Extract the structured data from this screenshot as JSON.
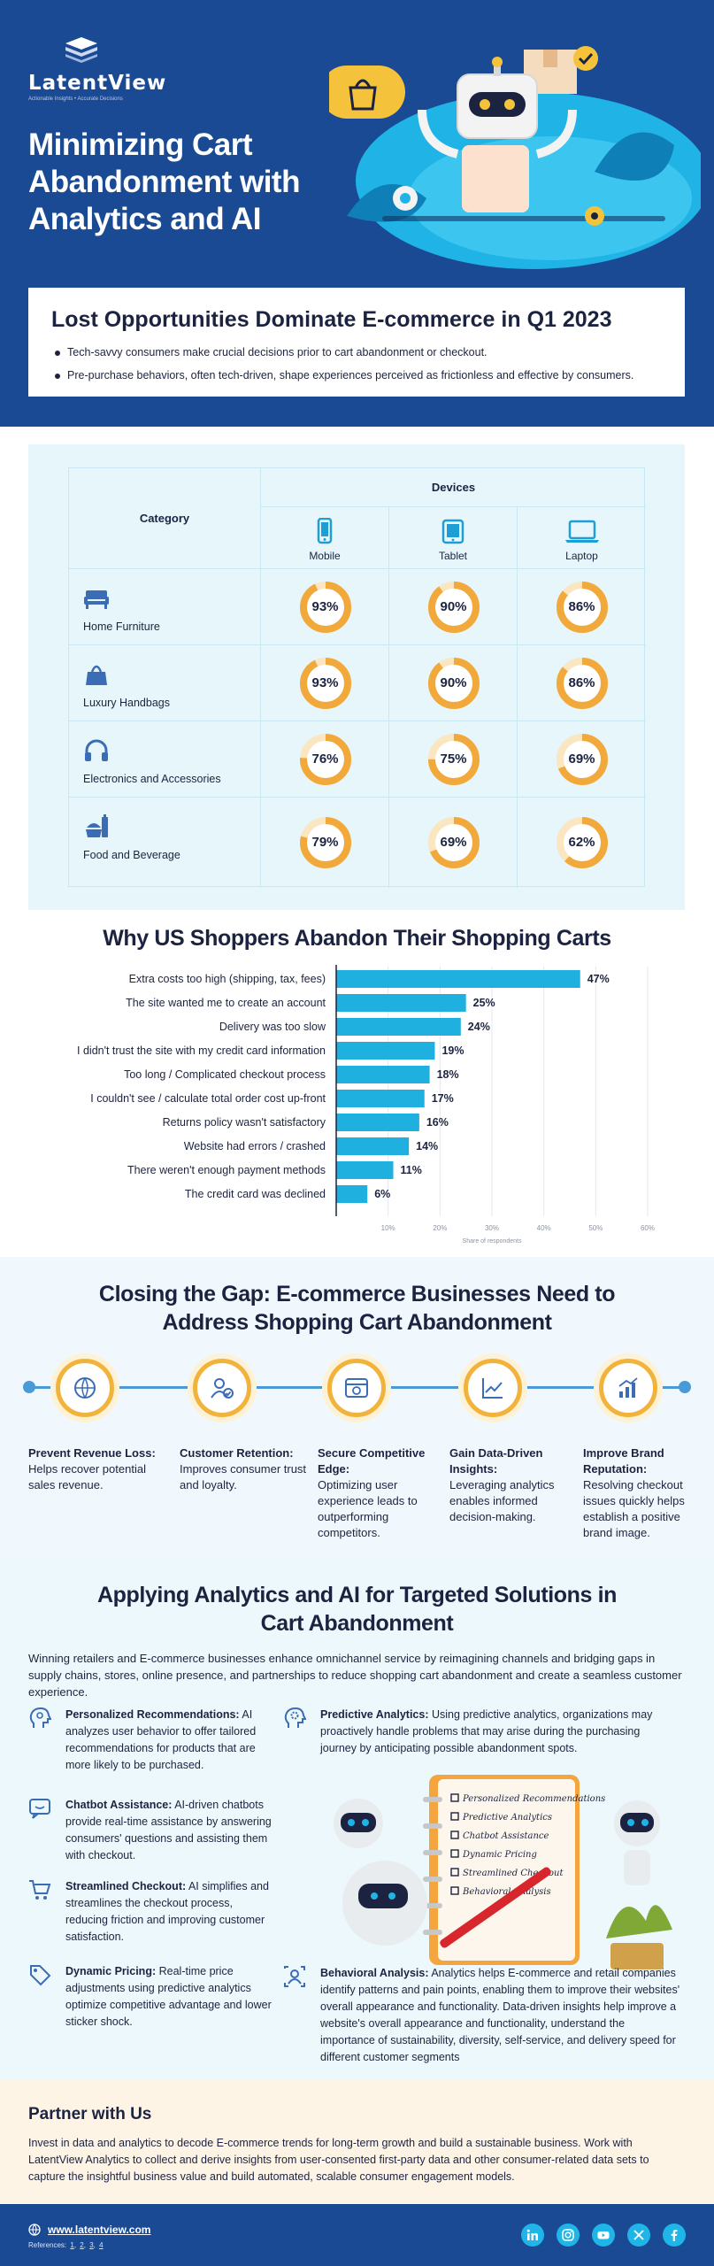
{
  "brand": {
    "name": "LatentView",
    "tagline": "Actionable Insights • Accurate Decisions"
  },
  "hero": {
    "title": "Minimizing Cart Abandonment with Analytics and AI"
  },
  "intro": {
    "title": "Lost Opportunities Dominate E-commerce in Q1 2023",
    "bullets": [
      "Tech-savvy consumers make crucial decisions prior to cart abandonment or checkout.",
      "Pre-purchase behaviors, often tech-driven, shape experiences perceived as frictionless and effective by consumers."
    ]
  },
  "devices_table": {
    "category_header": "Category",
    "devices_header": "Devices",
    "devices": [
      "Mobile",
      "Tablet",
      "Laptop"
    ],
    "rows": [
      {
        "category": "Home Furniture",
        "icon": "sofa-icon",
        "values": [
          93,
          90,
          86
        ]
      },
      {
        "category": "Luxury Handbags",
        "icon": "handbag-icon",
        "values": [
          93,
          90,
          86
        ]
      },
      {
        "category": "Electronics and Accessories",
        "icon": "headphones-icon",
        "values": [
          76,
          75,
          69
        ]
      },
      {
        "category": "Food and Beverage",
        "icon": "food-icon",
        "values": [
          79,
          69,
          62
        ]
      }
    ],
    "ring_color": "#f2a93b",
    "ring_track": "#fbe6c2"
  },
  "chart_data": {
    "type": "bar",
    "orientation": "horizontal",
    "title": "Why US Shoppers Abandon Their Shopping Carts",
    "xlabel": "Share of respondents",
    "categories": [
      "Extra costs too high (shipping, tax, fees)",
      "The site wanted me to create an account",
      "Delivery was too slow",
      "I didn't trust the site with my credit card information",
      "Too long / Complicated checkout process",
      "I couldn't see / calculate total order cost up-front",
      "Returns policy wasn't satisfactory",
      "Website had errors / crashed",
      "There weren't enough payment methods",
      "The credit card was declined"
    ],
    "values": [
      47,
      25,
      24,
      19,
      18,
      17,
      16,
      14,
      11,
      6
    ],
    "data_labels": [
      "47%",
      "25%",
      "24%",
      "19%",
      "18%",
      "17%",
      "16%",
      "14%",
      "11%",
      "6%"
    ],
    "xticks": [
      "10%",
      "20%",
      "30%",
      "40%",
      "50%",
      "60%"
    ],
    "xtick_values": [
      10,
      20,
      30,
      40,
      50,
      60
    ],
    "xlim": [
      0,
      60
    ],
    "grid": true,
    "bar_color": "#1fb0e0"
  },
  "gap": {
    "title": "Closing the Gap: E-commerce Businesses Need to Address Shopping Cart Abandonment",
    "items": [
      {
        "title": "Prevent Revenue Loss:",
        "text": "Helps recover potential sales revenue.",
        "icon": "currency-globe-icon"
      },
      {
        "title": "Customer Retention:",
        "text": "Improves consumer trust and loyalty.",
        "icon": "user-check-icon"
      },
      {
        "title": "Secure Competitive Edge:",
        "text": "Optimizing user experience leads to outperforming competitors.",
        "icon": "browser-window-icon"
      },
      {
        "title": "Gain Data-Driven Insights:",
        "text": "Leveraging analytics enables informed decision-making.",
        "icon": "line-chart-icon"
      },
      {
        "title": "Improve Brand Reputation:",
        "text": "Resolving checkout issues quickly helps establish a positive brand image.",
        "icon": "bar-chart-icon"
      }
    ]
  },
  "apply": {
    "title": "Applying Analytics and AI for Targeted Solutions in Cart Abandonment",
    "intro": "Winning retailers and E-commerce businesses enhance omnichannel service by reimagining channels and bridging gaps in supply chains, stores, online presence, and partnerships to reduce shopping cart abandonment and create a seamless customer experience.",
    "features": [
      {
        "title": "Personalized Recommendations:",
        "text": "AI analyzes user behavior to offer tailored recommendations for products that are more likely to be purchased.",
        "icon": "lightbulb-head-icon"
      },
      {
        "title": "Chatbot Assistance:",
        "text": "AI-driven chatbots provide real-time assistance by answering consumers' questions and assisting them with checkout.",
        "icon": "chat-icon"
      },
      {
        "title": "Streamlined Checkout:",
        "text": "AI simplifies and streamlines the checkout process, reducing friction and improving customer satisfaction.",
        "icon": "cart-icon"
      },
      {
        "title": "Dynamic Pricing:",
        "text": "Real-time price adjustments using predictive analytics optimize competitive advantage and lower sticker shock.",
        "icon": "price-tag-icon"
      },
      {
        "title": "Predictive Analytics:",
        "text": "Using predictive analytics, organizations may proactively handle problems that may arise during the purchasing journey by anticipating possible abandonment spots.",
        "icon": "gear-head-icon"
      },
      {
        "title": "Behavioral Analysis:",
        "text": "Analytics helps E-commerce and retail companies identify patterns and pain points, enabling them to improve their websites' overall appearance and functionality. Data-driven insights help improve a website's overall appearance and functionality, understand the importance of sustainability, diversity, self-service, and delivery speed for different customer segments",
        "icon": "user-analysis-icon"
      }
    ],
    "notebook_items": [
      "Personalized Recommendations",
      "Predictive Analytics",
      "Chatbot Assistance",
      "Dynamic Pricing",
      "Streamlined Checkout",
      "Behavioral Analysis"
    ]
  },
  "partner": {
    "title": "Partner with Us",
    "text": "Invest in data and analytics to decode E-commerce trends for long-term growth and build a sustainable business. Work with LatentView Analytics to collect and derive insights from user-consented first-party data and other consumer-related data sets to capture the insightful business value and build automated, scalable consumer engagement models."
  },
  "footer": {
    "url": "www.latentview.com",
    "references_label": "References:",
    "references": [
      "1",
      "2",
      "3",
      "4"
    ],
    "social": [
      "linkedin-icon",
      "instagram-icon",
      "youtube-icon",
      "x-twitter-icon",
      "facebook-icon"
    ]
  }
}
